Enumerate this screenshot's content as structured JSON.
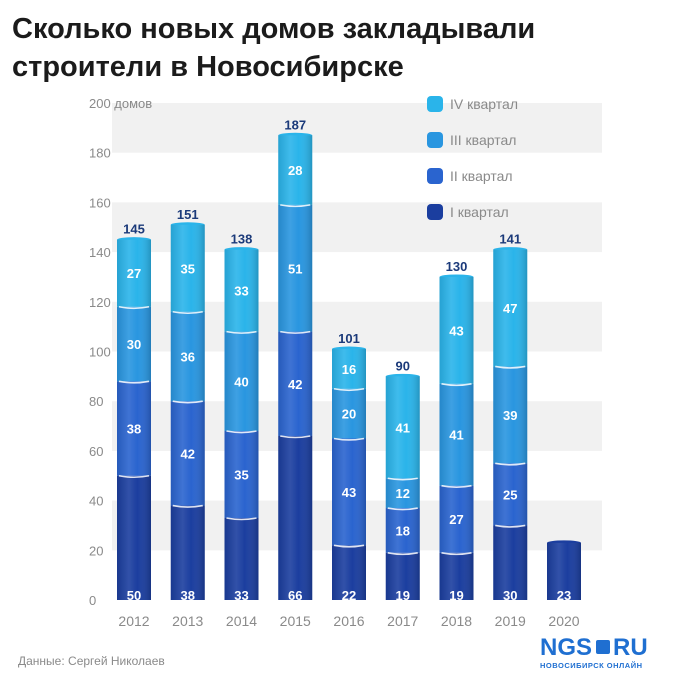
{
  "title_line1": "Сколько новых домов закладывали",
  "title_line2": "строители в Новосибирске",
  "source": "Данные: Сергей Николаев",
  "logo": {
    "main": "NGS",
    "domain": "RU",
    "sub": "НОВОСИБИРСК ОНЛАЙН"
  },
  "colors": {
    "q1": "#1b3e9f",
    "q2": "#2a64cf",
    "q3": "#2996e0",
    "q4": "#2ab4ea",
    "total_label": "#1b3a7a",
    "axis_text": "#8a8a8a",
    "band": "#f1f1f1"
  },
  "chart_data": {
    "type": "bar",
    "stacked": true,
    "categories": [
      "2012",
      "2013",
      "2014",
      "2015",
      "2016",
      "2017",
      "2018",
      "2019",
      "2020"
    ],
    "series": [
      {
        "name": "I квартал",
        "values": [
          50,
          38,
          33,
          66,
          22,
          19,
          19,
          30,
          23
        ]
      },
      {
        "name": "II квартал",
        "values": [
          38,
          42,
          35,
          42,
          43,
          18,
          27,
          25,
          null
        ]
      },
      {
        "name": "III квартал",
        "values": [
          30,
          36,
          40,
          51,
          20,
          12,
          41,
          39,
          null
        ]
      },
      {
        "name": "IV квартал",
        "values": [
          27,
          35,
          33,
          28,
          16,
          41,
          43,
          47,
          null
        ]
      }
    ],
    "totals": [
      145,
      151,
      138,
      187,
      101,
      90,
      130,
      141,
      null
    ],
    "ylabel": "домов",
    "ylim": [
      0,
      200
    ],
    "yticks": [
      0,
      20,
      40,
      60,
      80,
      100,
      120,
      140,
      160,
      180,
      200
    ],
    "ytick_labels": [
      "0",
      "20",
      "40",
      "60",
      "80",
      "100",
      "120",
      "140",
      "160",
      "180",
      "200 домов"
    ],
    "legend": [
      "IV квартал",
      "III квартал",
      "II квартал",
      "I квартал"
    ],
    "legend_position": "top-right",
    "grid": "alternating-bands"
  }
}
